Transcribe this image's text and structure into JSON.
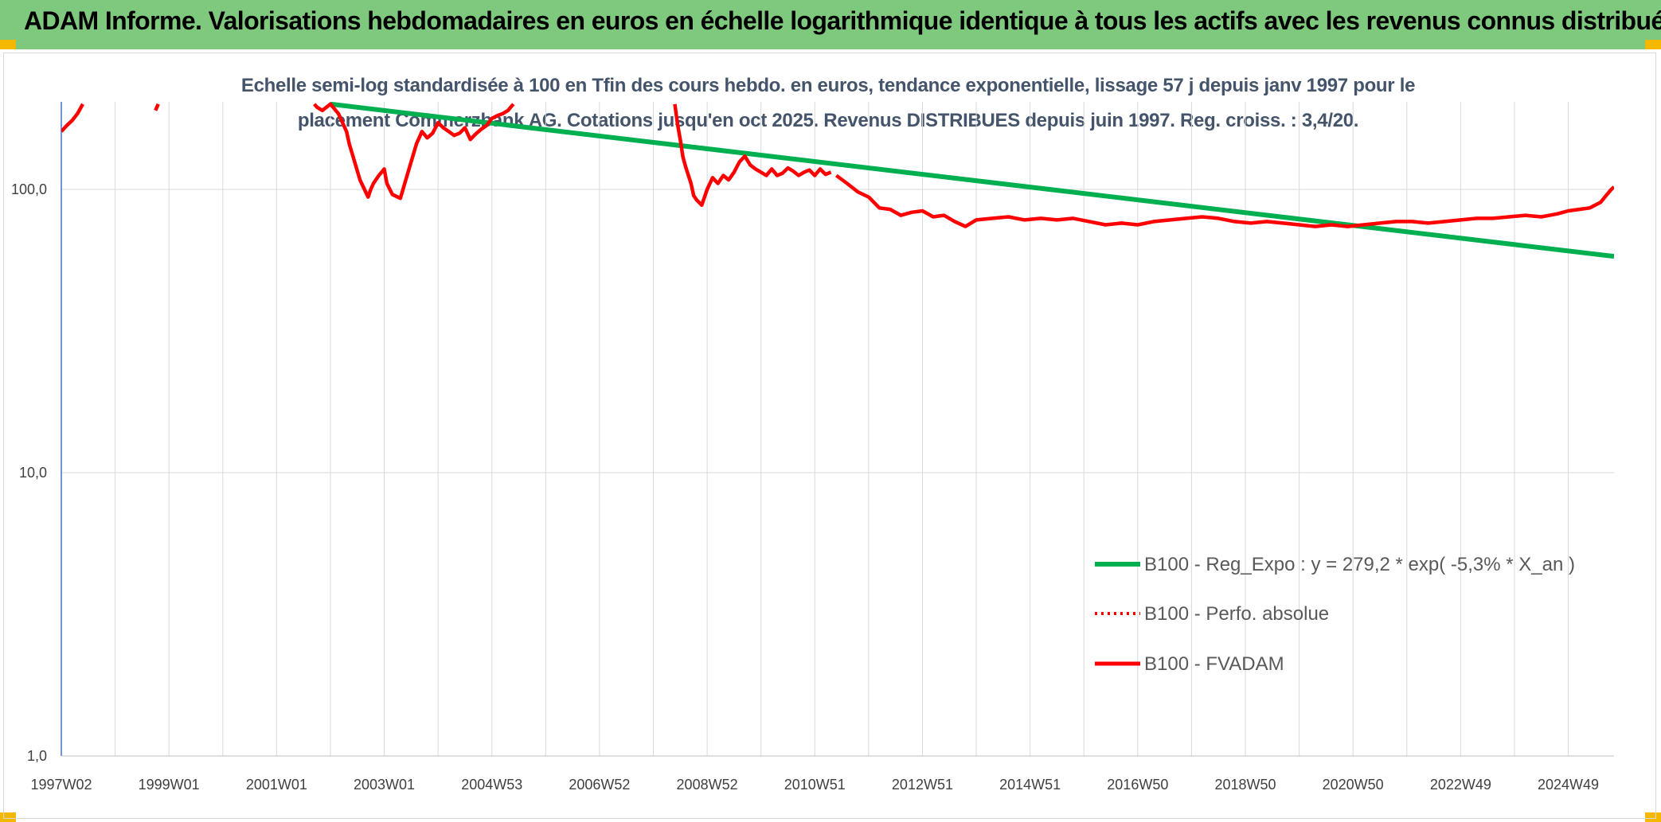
{
  "header": {
    "title": "ADAM Informe. Valorisations hebdomadaires en euros en échelle logarithmique identique à tous les actifs avec les revenus connus distribués"
  },
  "colors": {
    "banner": "#7fc97f",
    "accent": "#f5b800",
    "series_red": "#ff0000",
    "series_green": "#00b050"
  },
  "chart_data": {
    "type": "line",
    "title_line1": "Echelle semi-log standardisée à 100 en Tfin des cours hebdo. en euros, tendance exponentielle, lissage 57 j depuis janv 1997 pour le",
    "title_line2": "placement Commerzbank AG. Cotations jusqu'en oct 2025. Revenus DISTRIBUES depuis juin 1997. Reg. croiss. : 3,4/20.",
    "y_scale": "log",
    "ylim": [
      1,
      200
    ],
    "y_ticks": [
      "1,0",
      "10,0",
      "100,0"
    ],
    "x_range": [
      1997.0,
      2025.85
    ],
    "x_ticks": [
      {
        "label": "1997W02",
        "x": 1997.0
      },
      {
        "label": "1999W01",
        "x": 1999.0
      },
      {
        "label": "2001W01",
        "x": 2001.0
      },
      {
        "label": "2003W01",
        "x": 2003.0
      },
      {
        "label": "2004W53",
        "x": 2005.0
      },
      {
        "label": "2006W52",
        "x": 2007.0
      },
      {
        "label": "2008W52",
        "x": 2009.0
      },
      {
        "label": "2010W51",
        "x": 2011.0
      },
      {
        "label": "2012W51",
        "x": 2013.0
      },
      {
        "label": "2014W51",
        "x": 2015.0
      },
      {
        "label": "2016W50",
        "x": 2017.0
      },
      {
        "label": "2018W50",
        "x": 2019.0
      },
      {
        "label": "2020W50",
        "x": 2021.0
      },
      {
        "label": "2022W49",
        "x": 2023.0
      },
      {
        "label": "2024W49",
        "x": 2025.0
      }
    ],
    "grid": "vertical and horizontal",
    "legend_position": "bottom-right",
    "series": [
      {
        "name": "B100 - Reg_Expo : y = 279,2 * exp( -5,3% *  X_an )",
        "style": "solid-green",
        "x": [
          2002.0,
          2025.85
        ],
        "y": [
          200,
          58
        ]
      },
      {
        "name": "B100 - Perfo. absolue",
        "style": "dotted-red",
        "x": [],
        "y": []
      },
      {
        "name": "B100 - FVADAM",
        "style": "solid-red",
        "segments": [
          {
            "x": [
              1997.0,
              1997.1,
              1997.2,
              1997.3,
              1997.4
            ],
            "y": [
              160,
              168,
              175,
              185,
              200
            ]
          },
          {
            "x": [
              1998.75,
              1998.8
            ],
            "y": [
              190,
              200
            ]
          },
          {
            "x": [
              2001.7,
              2001.75,
              2001.85,
              2002.0,
              2002.15,
              2002.3,
              2002.35,
              2002.45,
              2002.55,
              2002.7,
              2002.75,
              2002.8,
              2002.9,
              2003.0,
              2003.05,
              2003.15,
              2003.3,
              2003.4,
              2003.5,
              2003.6,
              2003.7,
              2003.8,
              2003.9,
              2004.0,
              2004.1,
              2004.2,
              2004.3,
              2004.4,
              2004.5,
              2004.6,
              2004.7,
              2004.8,
              2004.9,
              2005.0,
              2005.1,
              2005.2,
              2005.3,
              2005.35,
              2005.4
            ],
            "y": [
              200,
              195,
              190,
              200,
              185,
              160,
              145,
              125,
              108,
              94,
              100,
              105,
              112,
              118,
              105,
              96,
              93,
              108,
              125,
              145,
              160,
              152,
              158,
              172,
              165,
              160,
              155,
              158,
              165,
              150,
              157,
              163,
              168,
              178,
              182,
              185,
              190,
              195,
              200
            ]
          },
          {
            "x": [
              2008.4,
              2008.45,
              2008.5,
              2008.55,
              2008.6,
              2008.7,
              2008.75,
              2008.8,
              2008.9,
              2009.0,
              2009.1,
              2009.2,
              2009.3,
              2009.4,
              2009.5,
              2009.6,
              2009.7,
              2009.8,
              2009.9,
              2010.0,
              2010.1,
              2010.2,
              2010.3,
              2010.4,
              2010.5,
              2010.6,
              2010.7,
              2010.8,
              2010.9,
              2011.0,
              2011.1,
              2011.2,
              2011.3
            ],
            "y": [
              200,
              170,
              150,
              130,
              120,
              105,
              95,
              92,
              88,
              100,
              110,
              105,
              112,
              108,
              115,
              125,
              131,
              122,
              118,
              115,
              112,
              118,
              112,
              114,
              119,
              116,
              112,
              115,
              117,
              112,
              118,
              113,
              115
            ]
          },
          {
            "x": [
              2011.4,
              2011.6,
              2011.8,
              2012.0,
              2012.2,
              2012.4,
              2012.6,
              2012.8,
              2013.0,
              2013.2,
              2013.4,
              2013.6,
              2013.8,
              2014.0,
              2014.3,
              2014.6,
              2014.9,
              2015.2,
              2015.5,
              2015.8,
              2016.1,
              2016.4,
              2016.7,
              2017.0,
              2017.3,
              2017.6,
              2017.9,
              2018.2,
              2018.5,
              2018.8,
              2019.1,
              2019.4,
              2019.7,
              2020.0,
              2020.3,
              2020.6,
              2020.9,
              2021.2,
              2021.5,
              2021.8,
              2022.1,
              2022.4,
              2022.7,
              2023.0,
              2023.3,
              2023.6,
              2023.9,
              2024.2,
              2024.5,
              2024.8,
              2025.0,
              2025.2,
              2025.4,
              2025.6,
              2025.7,
              2025.8,
              2025.85
            ],
            "y": [
              112,
              105,
              98,
              94,
              86,
              85,
              81,
              83,
              84,
              80,
              81,
              77,
              74,
              78,
              79,
              80,
              78,
              79,
              78,
              79,
              77,
              75,
              76,
              75,
              77,
              78,
              79,
              80,
              79,
              77,
              76,
              77,
              76,
              75,
              74,
              75,
              74,
              75,
              76,
              77,
              77,
              76,
              77,
              78,
              79,
              79,
              80,
              81,
              80,
              82,
              84,
              85,
              86,
              90,
              95,
              100,
              102
            ]
          }
        ]
      }
    ]
  }
}
